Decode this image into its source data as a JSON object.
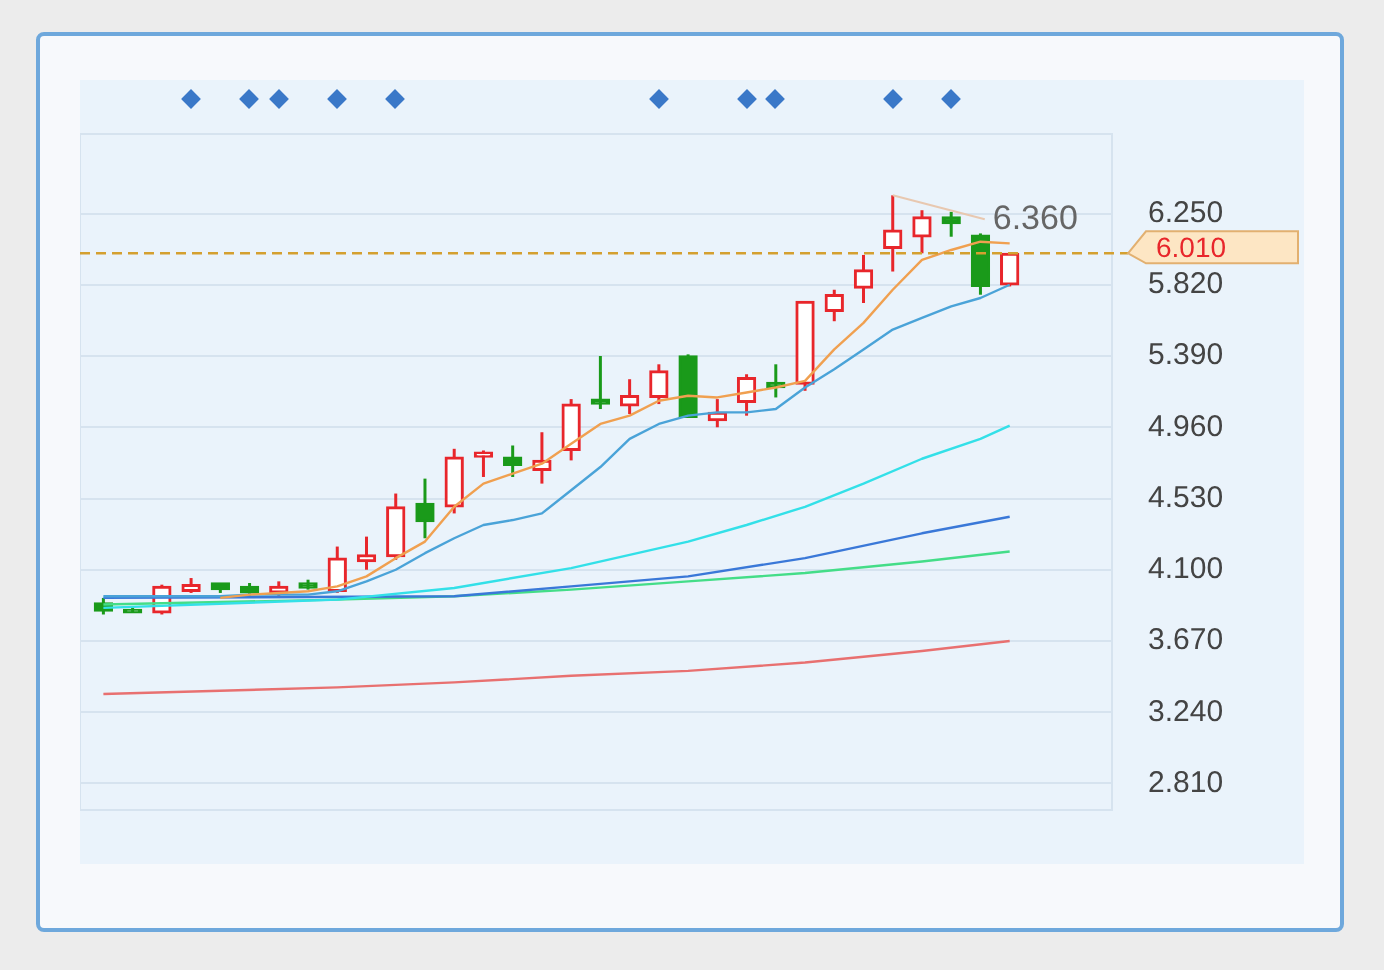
{
  "chart_data": {
    "type": "candlestick",
    "categories": [
      null,
      null,
      null,
      null,
      null,
      null,
      null,
      null,
      null,
      null,
      null,
      null,
      null,
      null,
      null,
      null,
      null,
      null,
      null,
      null,
      null,
      null,
      null,
      null,
      null,
      null,
      null,
      null,
      null,
      null,
      null,
      null
    ],
    "ohlc": [
      [
        3.9,
        3.93,
        3.83,
        3.85
      ],
      [
        3.86,
        3.87,
        3.84,
        3.84
      ],
      [
        3.84,
        4.01,
        3.83,
        4.0
      ],
      [
        3.97,
        4.05,
        3.96,
        4.01
      ],
      [
        4.02,
        4.02,
        3.96,
        3.98
      ],
      [
        4.0,
        4.02,
        3.94,
        3.96
      ],
      [
        3.96,
        4.03,
        3.94,
        4.0
      ],
      [
        4.02,
        4.04,
        3.98,
        3.99
      ],
      [
        3.97,
        4.24,
        3.96,
        4.17
      ],
      [
        4.15,
        4.3,
        4.1,
        4.19
      ],
      [
        4.18,
        4.56,
        4.16,
        4.48
      ],
      [
        4.5,
        4.65,
        4.29,
        4.39
      ],
      [
        4.48,
        4.83,
        4.44,
        4.78
      ],
      [
        4.78,
        4.82,
        4.66,
        4.81
      ],
      [
        4.78,
        4.85,
        4.66,
        4.73
      ],
      [
        4.7,
        4.93,
        4.62,
        4.76
      ],
      [
        4.82,
        5.13,
        4.76,
        5.1
      ],
      [
        5.13,
        5.39,
        5.07,
        5.1
      ],
      [
        5.09,
        5.25,
        5.04,
        5.15
      ],
      [
        5.14,
        5.34,
        5.1,
        5.3
      ],
      [
        5.39,
        5.4,
        5.02,
        5.02
      ],
      [
        5.0,
        5.13,
        4.96,
        5.05
      ],
      [
        5.11,
        5.28,
        5.03,
        5.26
      ],
      [
        5.23,
        5.34,
        5.14,
        5.2
      ],
      [
        5.22,
        5.72,
        5.18,
        5.72
      ],
      [
        5.66,
        5.79,
        5.6,
        5.76
      ],
      [
        5.8,
        6.0,
        5.71,
        5.91
      ],
      [
        6.04,
        6.36,
        5.9,
        6.15
      ],
      [
        6.11,
        6.27,
        6.01,
        6.23
      ],
      [
        6.23,
        6.26,
        6.11,
        6.19
      ],
      [
        6.12,
        6.13,
        5.76,
        5.81
      ],
      [
        5.82,
        6.01,
        5.81,
        6.01
      ]
    ],
    "colors": [
      "#1a9a1a",
      "#1a9a1a",
      "#e8262b",
      "#e8262b",
      "#1a9a1a",
      "#1a9a1a",
      "#e8262b",
      "#1a9a1a",
      "#e8262b",
      "#e8262b",
      "#e8262b",
      "#1a9a1a",
      "#e8262b",
      "#e8262b",
      "#1a9a1a",
      "#e8262b",
      "#e8262b",
      "#1a9a1a",
      "#e8262b",
      "#e8262b",
      "#1a9a1a",
      "#e8262b",
      "#e8262b",
      "#1a9a1a",
      "#e8262b",
      "#e8262b",
      "#e8262b",
      "#e8262b",
      "#e8262b",
      "#1a9a1a",
      "#1a9a1a",
      "#e8262b"
    ],
    "series": [
      {
        "type": "line",
        "color": "#f0a050",
        "values": [
          null,
          null,
          null,
          null,
          3.93,
          3.95,
          3.96,
          3.97,
          4.0,
          4.06,
          4.17,
          4.27,
          4.48,
          4.62,
          4.68,
          4.74,
          4.86,
          4.98,
          5.03,
          5.12,
          5.15,
          5.14,
          5.17,
          5.2,
          5.24,
          5.43,
          5.59,
          5.79,
          5.97,
          6.03,
          6.08,
          6.07
        ]
      },
      {
        "type": "line",
        "color": "#4aa3d8",
        "values": [
          3.94,
          3.94,
          3.94,
          3.94,
          3.94,
          3.95,
          3.95,
          3.95,
          3.97,
          4.03,
          4.1,
          4.2,
          4.29,
          4.37,
          4.4,
          4.44,
          4.58,
          4.72,
          4.89,
          4.98,
          5.03,
          5.05,
          5.05,
          5.07,
          5.2,
          5.31,
          5.43,
          5.55,
          5.62,
          5.69,
          5.74,
          5.82
        ]
      },
      {
        "type": "line",
        "color": "#33e0e8",
        "values": [
          3.87,
          null,
          null,
          null,
          null,
          null,
          null,
          null,
          3.92,
          null,
          null,
          null,
          3.99,
          null,
          null,
          null,
          4.11,
          null,
          null,
          null,
          4.27,
          null,
          4.37,
          null,
          4.48,
          null,
          4.62,
          null,
          4.77,
          null,
          4.89,
          4.97
        ]
      },
      {
        "type": "line",
        "color": "#3a78d8",
        "values": [
          3.93,
          null,
          null,
          null,
          null,
          null,
          null,
          null,
          null,
          null,
          null,
          null,
          3.94,
          null,
          null,
          null,
          4.0,
          null,
          null,
          null,
          4.06,
          null,
          null,
          null,
          4.17,
          null,
          null,
          null,
          4.32,
          null,
          null,
          4.42
        ]
      },
      {
        "type": "line",
        "color": "#44dd88",
        "values": [
          3.89,
          null,
          null,
          null,
          null,
          null,
          null,
          null,
          3.92,
          null,
          null,
          null,
          3.94,
          null,
          null,
          null,
          3.98,
          null,
          null,
          null,
          4.03,
          null,
          null,
          null,
          4.08,
          null,
          null,
          null,
          4.15,
          null,
          null,
          4.21
        ]
      },
      {
        "type": "line",
        "color": "#e87070",
        "values": [
          3.35,
          null,
          null,
          null,
          null,
          null,
          null,
          null,
          3.39,
          null,
          null,
          null,
          3.42,
          null,
          null,
          null,
          3.46,
          null,
          null,
          null,
          3.49,
          null,
          null,
          null,
          3.54,
          null,
          null,
          null,
          3.61,
          null,
          null,
          3.67
        ]
      }
    ],
    "ylim": [
      2.65,
      6.73
    ],
    "yticks": [
      {
        "value": 2.81,
        "label": "2.810"
      },
      {
        "value": 3.24,
        "label": "3.240"
      },
      {
        "value": 3.67,
        "label": "3.670"
      },
      {
        "value": 4.1,
        "label": "4.100"
      },
      {
        "value": 4.53,
        "label": "4.530"
      },
      {
        "value": 4.96,
        "label": "4.960"
      },
      {
        "value": 5.39,
        "label": "5.390"
      },
      {
        "value": 5.82,
        "label": "5.820"
      },
      {
        "value": 6.25,
        "label": "6.250"
      }
    ],
    "ref_lines": [
      {
        "axis": "y",
        "value": 6.01,
        "label": "6.010",
        "color": "#d4a030",
        "line_style": "dashed"
      }
    ],
    "annotations": [
      "6.360"
    ],
    "grid": "y",
    "tick_labels": "y"
  }
}
